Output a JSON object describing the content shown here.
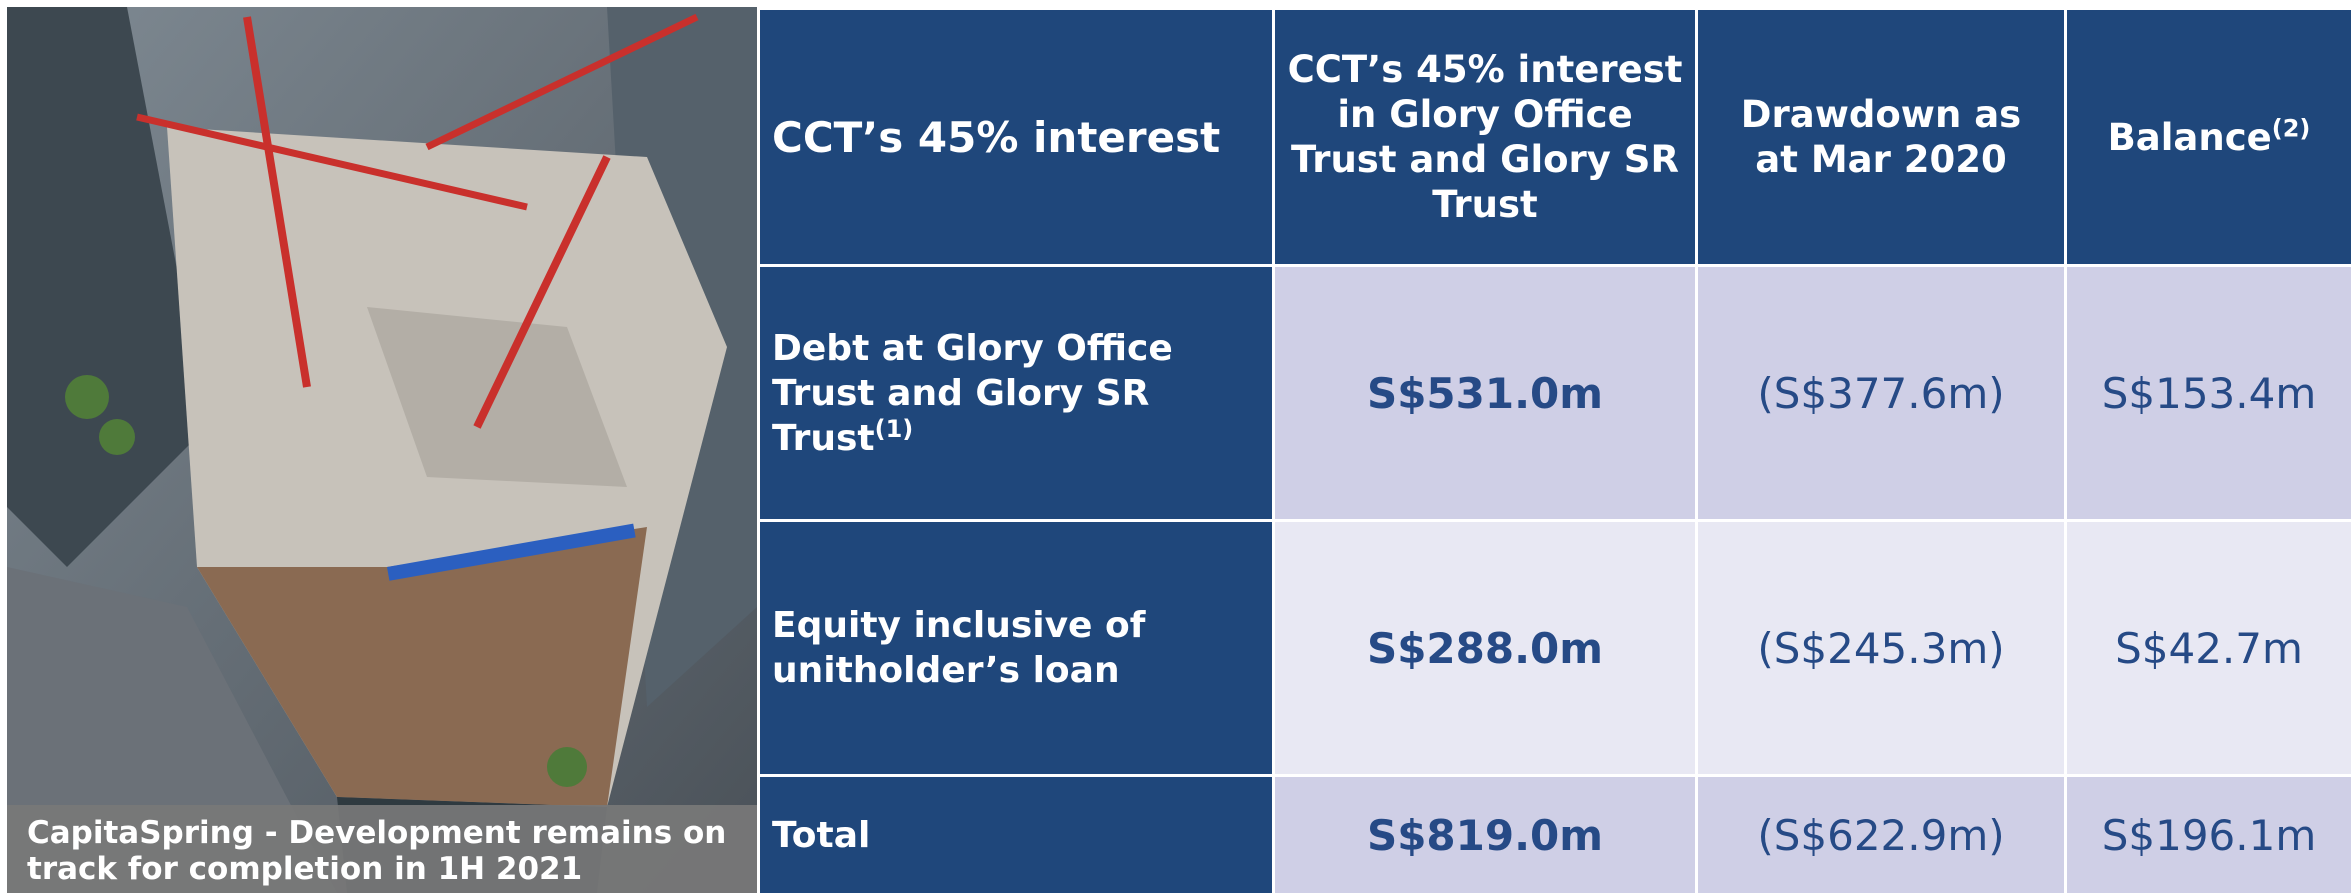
{
  "photo": {
    "caption": "CapitaSpring - Development remains on track for completion in 1H 2021"
  },
  "table": {
    "header": [
      {
        "text": "CCT’s 45% interest"
      },
      {
        "text": "CCT’s 45% interest in Glory Office Trust and Glory SR Trust"
      },
      {
        "text": "Drawdown as at Mar 2020"
      },
      {
        "text": "Balance",
        "note": "(2)"
      }
    ],
    "rows": [
      [
        {
          "text": "Debt at Glory Office Trust and Glory SR Trust",
          "note": "(1)"
        },
        {
          "text": "S$531.0m"
        },
        {
          "text": "(S$377.6m)"
        },
        {
          "text": "S$153.4m"
        }
      ],
      [
        {
          "text": "Equity inclusive of unitholder’s loan"
        },
        {
          "text": "S$288.0m"
        },
        {
          "text": "(S$245.3m)"
        },
        {
          "text": "S$42.7m"
        }
      ],
      [
        {
          "text": "Total"
        },
        {
          "text": "S$819.0m"
        },
        {
          "text": "(S$622.9m)"
        },
        {
          "text": "S$196.1m"
        }
      ]
    ]
  }
}
